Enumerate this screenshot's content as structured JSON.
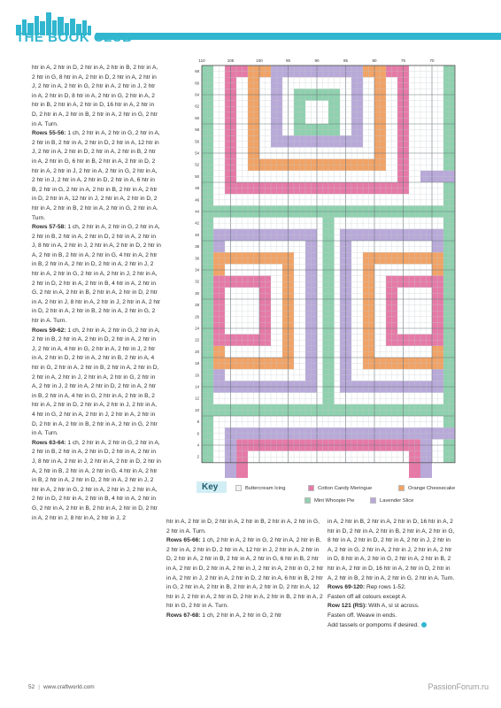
{
  "header": {
    "brand": "THE BOOK CLUB",
    "accent": "#31b6cf"
  },
  "colors": {
    "cream": "#f2f2f2",
    "pink": "#e67aa7",
    "orange": "#f1a366",
    "mint": "#8fd1ae",
    "lavender": "#b8a9d9",
    "grid": "#9aa3a8"
  },
  "chart_axes": {
    "top": [
      "110",
      "105",
      "100",
      "95",
      "90",
      "85",
      "80",
      "75",
      "70"
    ],
    "left": [
      "68",
      "66",
      "64",
      "62",
      "60",
      "58",
      "56",
      "54",
      "52",
      "50",
      "48",
      "46",
      "44",
      "42",
      "40",
      "38",
      "36",
      "34",
      "32",
      "30",
      "28",
      "26",
      "24",
      "22",
      "20",
      "18",
      "16",
      "14",
      "12",
      "10",
      "8",
      "6",
      "4",
      "2"
    ]
  },
  "key": {
    "title": "Key",
    "items": [
      {
        "label": "Buttercream Icing",
        "color": "#f2f2f2"
      },
      {
        "label": "Cotton Candy Meringue",
        "color": "#e67aa7"
      },
      {
        "label": "Orange Cheesecake",
        "color": "#f1a366"
      },
      {
        "label": "Mint Whoopie Pie",
        "color": "#8fd1ae"
      },
      {
        "label": "Lavender Slice",
        "color": "#b8a9d9"
      }
    ]
  },
  "col1": [
    {
      "label": "",
      "text": "htr in A, 2 htr in D, 2 htr in A, 2 htr in B, 2 htr in A, 2 htr in G, 8 htr in A, 2 htr in D, 2 htr in A, 2 htr in J, 2 htr in A, 2 htr in G, 2 htr in A, 2 htr in J, 2 htr in A, 2 htr in D, 8 htr in A, 2 htr in G, 2 htr in A, 2 htr in B, 2 htr in A, 2 htr in D, 16 htr in A, 2 htr in D, 2 htr in A, 2 htr in B, 2 htr in A, 2 htr in G, 2 htr in A. Turn."
    },
    {
      "label": "Rows 55-56:",
      "text": " 1 ch, 2 htr in A, 2 htr in G, 2 htr in A, 2 htr in B, 2 htr in A, 2 htr in D, 2 htr in A, 12 htr in J, 2 htr in A, 2 htr in D, 2 htr in A, 2 htr in B, 2 htr in A, 2 htr in G, 6 htr in B, 2 htr in A, 2 htr in D, 2 htr in A, 2 htr in J, 2 htr in A, 2 htr in G, 2 htr in A, 2 htr in J, 2 htr in A, 2 htr in D, 2 htr in A, 6 htr in B, 2 htr in G, 2 htr in A, 2 htr in B, 2 htr in A, 2 htr in D, 2 htr in A, 12 htr in J, 2 htr in A, 2 htr in D, 2 htr in A, 2 htr in B, 2 htr in A, 2 htr in G, 2 htr in A. Turn."
    },
    {
      "label": "Rows 57-58:",
      "text": " 1 ch, 2 htr in A, 2 htr in G, 2 htr in A, 2 htr in B, 2 htr in A, 2 htr in D, 2 htr in A, 2 htr in J, 8 htr in A, 2 htr in J, 2 htr in A, 2 htr in D, 2 htr in A, 2 htr in B, 2 htr in A, 2 htr in G, 4 htr in A, 2 htr in B, 2 htr in A, 2 htr in D, 2 htr in A, 2 htr in J, 2 htr in A, 2 htr in G, 2 htr in A, 2 htr in J, 2 htr in A, 2 htr in D, 2 htr in A, 2 htr in B, 4 htr in A, 2 htr in G, 2 htr in A, 2 htr in B, 2 htr in A, 2 htr in D, 2 htr in A, 2 htr in J, 8 htr in A, 2 htr in J, 2 htr in A, 2 htr in D, 2 htr in A, 2 htr in B, 2 htr in A, 2 htr in G, 2 htr in A. Turn."
    },
    {
      "label": "Rows 59-62:",
      "text": " 1 ch, 2 htr in A, 2 htr in G, 2 htr in A, 2 htr in B, 2 htr in A, 2 htr in D, 2 htr in A, 2 htr in J, 2 htr in A, 4 htr in G, 2 htr in A, 2 htr in J, 2 htr in A, 2 htr in D, 2 htr in A, 2 htr in B, 2 htr in A, 4 htr in G, 2 htr in A, 2 htr in B, 2 htr in A, 2 htr in D, 2 htr in A, 2 htr in J, 2 htr in A, 2 htr in G, 2 htr in A, 2 htr in J, 2 htr in A, 2 htr in D, 2 htr in A, 2 htr in B, 2 htr in A, 4 htr in G, 2 htr in A, 2 htr in B, 2 htr in A, 2 htr in D, 2 htr in A, 2 htr in J, 2 htr in A, 4 htr in G, 2 htr in A, 2 htr in J, 2 htr in A, 2 htr in D, 2 htr in A, 2 htr in B, 2 htr in A, 2 htr in G, 2 htr in A. Turn."
    },
    {
      "label": "Rows 63-64:",
      "text": " 1 ch, 2 htr in A, 2 htr in G, 2 htr in A, 2 htr in B, 2 htr in A, 2 htr in D, 2 htr in A, 2 htr in J, 8 htr in A, 2 htr in J, 2 htr in A, 2 htr in D, 2 htr in A, 2 htr in B, 2 htr in A, 2 htr in G, 4 htr in A, 2 htr in B, 2 htr in A, 2 htr in D, 2 htr in A, 2 htr in J, 2 htr in A, 2 htr in G, 2 htr in A, 2 htr in J, 2 htr in A, 2 htr in D, 2 htr in A, 2 htr in B, 4 htr in A, 2 htr in G, 2 htr in A, 2 htr in B, 2 htr in A, 2 htr in D, 2 htr in A, 2 htr in J, 8 htr in A, 2 htr in J, 2"
    }
  ],
  "col2": [
    {
      "label": "",
      "text": "htr in A, 2 htr in D, 2 htr in A, 2 htr in B, 2 htr in A, 2 htr in G, 2 htr in A. Turn."
    },
    {
      "label": "Rows 65-66:",
      "text": " 1 ch, 2 htr in A, 2 htr in G, 2 htr in A, 2 htr in B, 2 htr in A, 2 htr in D, 2 htr in A, 12 htr in J, 2 htr in A, 2 htr in D, 2 htr in A, 2 htr in B, 2 htr in A, 2 htr in G, 6 htr in B, 2 htr in A, 2 htr in D, 2 htr in A, 2 htr in J, 2 htr in A, 2 htr in G, 2 htr in A, 2 htr in J, 2 htr in A, 2 htr in D, 2 htr in A, 6 htr in B, 2 htr in G, 2 htr in A, 2 htr in B, 2 htr in A, 2 htr in D, 2 htr in A, 12 htr in J, 2 htr in A, 2 htr in D, 2 htr in A, 2 htr in B, 2 htr in A, 2 htr in G, 2 htr in A. Turn."
    },
    {
      "label": "Rows 67-68:",
      "text": " 1 ch, 2 htr in A, 2 htr in G, 2 htr"
    }
  ],
  "col3": [
    {
      "label": "",
      "text": "in A, 2 htr in B, 2 htr in A, 2 htr in D, 16 htr in A, 2 htr in D, 2 htr in A, 2 htr in B, 2 htr in A, 2 htr in G, 8 htr in A, 2 htr in D, 2 htr in A, 2 htr in J, 2 htr in A, 2 htr in G, 2 htr in A, 2 htr in J, 2 htr in A, 2 htr in D, 8 htr in A, 2 htr in G, 2 htr in A, 2 htr in B, 2 htr in A, 2 htr in D, 16 htr in A, 2 htr in D, 2 htr in A, 2 htr in B, 2 htr in A, 2 htr in G, 2 htr in A. Turn."
    },
    {
      "label": "Rows 69-120:",
      "text": " Rep rows 1-52."
    },
    {
      "label": "",
      "text": "Fasten off all colours except A."
    },
    {
      "label": "Row 121 (RS):",
      "text": " With A, sl st across."
    },
    {
      "label": "",
      "text": "Fasten off. Weave in ends."
    },
    {
      "label": "",
      "text": "Add tassels or pompoms if desired."
    }
  ],
  "footer": {
    "page": "52",
    "url": "www.craftworld.com"
  },
  "watermark": "PassionForum.ru"
}
